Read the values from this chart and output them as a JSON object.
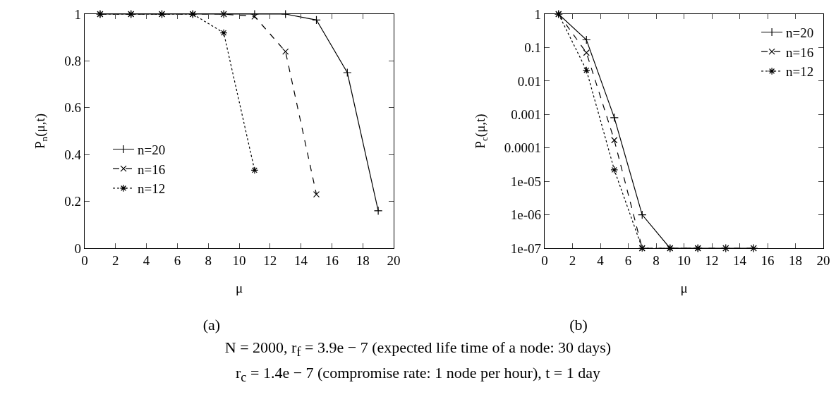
{
  "chart_data": [
    {
      "type": "line",
      "xlabel": "μ",
      "ylabel": "P$_{n}$(μ,t)",
      "annotations": [
        "(a)"
      ],
      "xlim": [
        0,
        20
      ],
      "xticks": [
        0,
        2,
        4,
        6,
        8,
        10,
        12,
        14,
        16,
        18,
        20
      ],
      "ylim": [
        0,
        1
      ],
      "yticks": [
        0,
        0.2,
        0.4,
        0.6,
        0.8,
        1
      ],
      "grid": false,
      "legend": "left",
      "series": [
        {
          "name": "n=20",
          "color": "#000000",
          "marker": "plus",
          "line_style": "solid",
          "x": [
            1,
            3,
            5,
            7,
            9,
            11,
            13,
            15,
            17,
            19
          ],
          "values": [
            1,
            1,
            1,
            1,
            1,
            1,
            1,
            0.975,
            0.75,
            0.16
          ]
        },
        {
          "name": "n=16",
          "color": "#000000",
          "marker": "x",
          "line_style": "dashed",
          "x": [
            1,
            3,
            5,
            7,
            9,
            11,
            13,
            15
          ],
          "values": [
            1,
            1,
            1,
            1,
            1,
            0.99,
            0.84,
            0.23
          ]
        },
        {
          "name": "n=12",
          "color": "#000000",
          "marker": "cross",
          "line_style": "dotted",
          "x": [
            1,
            3,
            5,
            7,
            9,
            11
          ],
          "values": [
            1,
            1,
            1,
            1,
            0.92,
            0.333
          ]
        }
      ]
    },
    {
      "type": "line",
      "xlabel": "μ",
      "ylabel": "P$_{c}$(μ,t)",
      "annotations": [
        "(b)",
        "N = 2000, r$_{f}$ = 3.9e − 7 (expected life time of a node: 30 days)",
        "r$_{c}$ = 1.4e − 7 (compromise rate: 1 node per hour), t = 1 day"
      ],
      "xlim": [
        0,
        20
      ],
      "xticks": [
        0,
        2,
        4,
        6,
        8,
        10,
        12,
        14,
        16,
        18,
        20
      ],
      "ylim": [
        1e-07,
        1
      ],
      "log": "y",
      "yticks": [
        1,
        0.1,
        0.01,
        0.001,
        0.0001,
        {
          "value": 1e-05,
          "label": "1e-05"
        },
        {
          "value": 1e-06,
          "label": "1e-06"
        },
        {
          "value": 1e-07,
          "label": "1e-07"
        }
      ],
      "grid": false,
      "legend": "top right",
      "series": [
        {
          "name": "n=20",
          "color": "#000000",
          "marker": "plus",
          "line_style": "solid",
          "x": [
            1,
            3,
            5,
            7,
            9,
            11,
            13,
            15
          ],
          "values": [
            1,
            0.17,
            0.0008,
            1e-06,
            1e-07,
            1e-07,
            1e-07,
            1e-07
          ]
        },
        {
          "name": "n=16",
          "color": "#000000",
          "marker": "x",
          "line_style": "dashed",
          "x": [
            1,
            3,
            5,
            7,
            9,
            11,
            13,
            15
          ],
          "values": [
            1,
            0.07,
            0.00017,
            1e-07,
            1e-07,
            1e-07,
            1e-07,
            1e-07
          ]
        },
        {
          "name": "n=12",
          "color": "#000000",
          "marker": "cross",
          "line_style": "dotted",
          "x": [
            1,
            3,
            5,
            7,
            9,
            11
          ],
          "values": [
            1,
            0.021,
            2.2e-05,
            1e-07,
            1e-07,
            1e-07
          ]
        }
      ]
    }
  ]
}
